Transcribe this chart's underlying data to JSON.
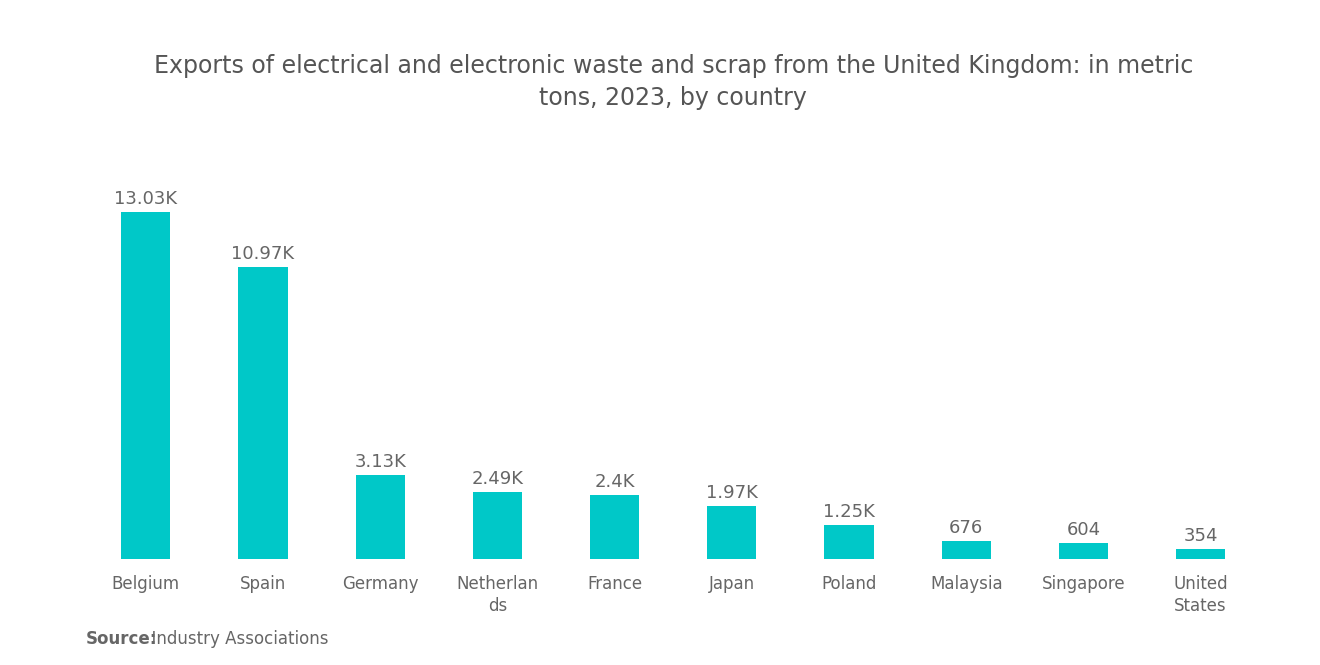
{
  "title": "Exports of electrical and electronic waste and scrap from the United Kingdom: in metric\ntons, 2023, by country",
  "xtick_labels": [
    "Belgium",
    "Spain",
    "Germany",
    "Netherlan\nds",
    "France",
    "Japan",
    "Poland",
    "Malaysia",
    "Singapore",
    "United\nStates"
  ],
  "values": [
    13030,
    10970,
    3130,
    2490,
    2400,
    1970,
    1250,
    676,
    604,
    354
  ],
  "value_labels": [
    "13.03K",
    "10.97K",
    "3.13K",
    "2.49K",
    "2.4K",
    "1.97K",
    "1.25K",
    "676",
    "604",
    "354"
  ],
  "bar_color": "#00C8C8",
  "background_color": "#ffffff",
  "title_color": "#555555",
  "label_color": "#666666",
  "source_bold": "Source:",
  "source_rest": "  Industry Associations",
  "ylim": [
    0,
    15500
  ],
  "title_fontsize": 17,
  "label_fontsize": 13,
  "tick_fontsize": 12,
  "source_fontsize": 12,
  "bar_width": 0.42
}
